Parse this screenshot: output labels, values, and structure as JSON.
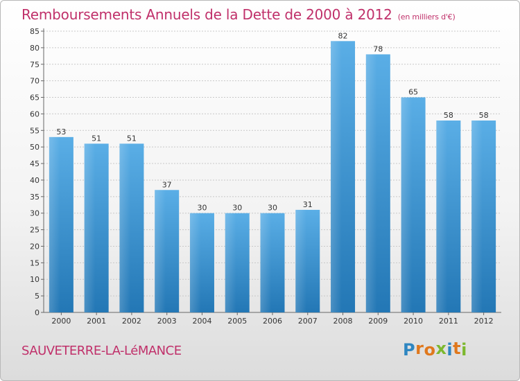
{
  "chart_data": {
    "type": "bar",
    "title": "Remboursements Annuels de la Dette de 2000 à 2012",
    "subtitle": "(en milliers d'€)",
    "categories": [
      "2000",
      "2001",
      "2002",
      "2003",
      "2004",
      "2005",
      "2006",
      "2007",
      "2008",
      "2009",
      "2010",
      "2011",
      "2012"
    ],
    "values": [
      53,
      51,
      51,
      37,
      30,
      30,
      30,
      31,
      82,
      78,
      65,
      58,
      58
    ],
    "ylim": [
      0,
      85
    ],
    "yticks": [
      0,
      5,
      10,
      15,
      20,
      25,
      30,
      35,
      40,
      45,
      50,
      55,
      60,
      65,
      70,
      75,
      80,
      85
    ],
    "xlabel": "",
    "ylabel": "",
    "grid": true
  },
  "footer": {
    "city": "SAUVETERRE-LA-LéMANCE",
    "brand": "Proxiti"
  },
  "colors": {
    "title": "#c0306a",
    "bar_light": "#5aaee6",
    "bar_dark": "#2377b5",
    "grid": "#c8c8c8",
    "brand": [
      "#2e86c1",
      "#e0781d",
      "#e0781d",
      "#7cb82f",
      "#2e86c1",
      "#e0781d",
      "#7cb82f"
    ]
  }
}
